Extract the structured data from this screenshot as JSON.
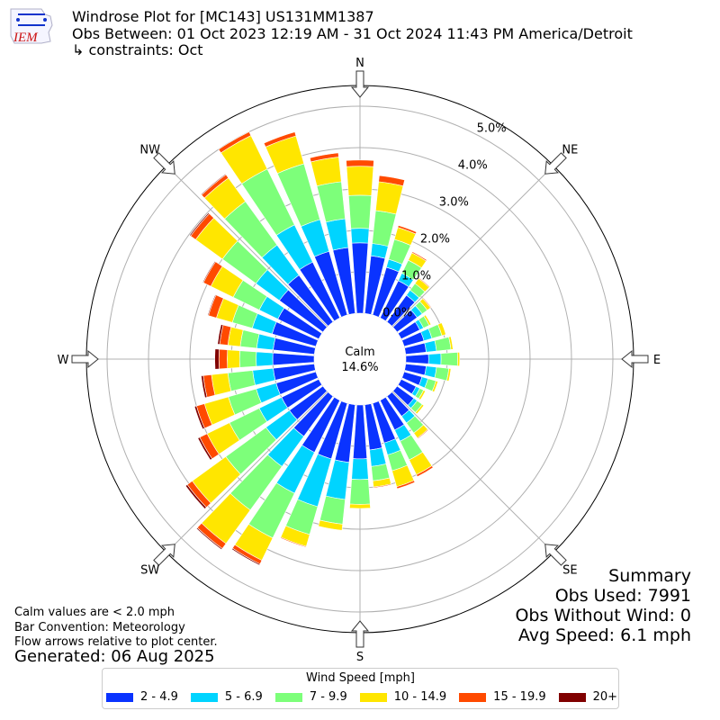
{
  "header": {
    "title": "Windrose Plot for [MC143] US131MM1387",
    "period": "Obs Between: 01 Oct 2023 12:19 AM - 31 Oct 2024 11:43 PM America/Detroit",
    "constraints": "↳ constraints: Oct"
  },
  "logo": {
    "text": "IEM",
    "icon": "iem-logo-icon"
  },
  "notes": {
    "calm": "Calm values are < 2.0 mph",
    "bar": "Bar Convention: Meteorology",
    "arrows": "Flow arrows relative to plot center.",
    "generated": "Generated: 06 Aug 2025"
  },
  "summary": {
    "heading": "Summary",
    "obs_used": "Obs Used: 7991",
    "obs_without_wind": "Obs Without Wind: 0",
    "avg_speed": "Avg Speed: 6.1 mph"
  },
  "chart_data": {
    "type": "windrose",
    "calm_label": "Calm",
    "calm_percent": "14.6%",
    "directions": [
      "N",
      "NE",
      "E",
      "SE",
      "S",
      "SW",
      "W",
      "NW"
    ],
    "radial_ticks": [
      "0.0%",
      "1.0%",
      "2.0%",
      "3.0%",
      "4.0%",
      "5.0%"
    ],
    "rmax": 5.5,
    "legend_title": "Wind Speed [mph]",
    "bins": [
      {
        "label": "2 - 4.9",
        "color": "#0a33ff"
      },
      {
        "label": "5 - 6.9",
        "color": "#00d4ff"
      },
      {
        "label": "7 - 9.9",
        "color": "#7dff7a"
      },
      {
        "label": "10 - 14.9",
        "color": "#ffe600"
      },
      {
        "label": "15 - 19.9",
        "color": "#ff4a00"
      },
      {
        "label": "20+",
        "color": "#800000"
      }
    ],
    "sector_width_deg": 10,
    "sectors": [
      {
        "dir": 0,
        "values": [
          1.7,
          0.35,
          0.8,
          0.7,
          0.15,
          0
        ]
      },
      {
        "dir": 10,
        "values": [
          1.4,
          0.3,
          0.8,
          0.7,
          0.15,
          0
        ]
      },
      {
        "dir": 20,
        "values": [
          1.2,
          0.2,
          0.5,
          0.3,
          0.05,
          0
        ]
      },
      {
        "dir": 30,
        "values": [
          1.0,
          0.2,
          0.35,
          0.2,
          0.03,
          0
        ]
      },
      {
        "dir": 40,
        "values": [
          0.8,
          0.15,
          0.2,
          0.15,
          0.02,
          0
        ]
      },
      {
        "dir": 50,
        "values": [
          0.6,
          0.15,
          0.15,
          0.1,
          0.02,
          0
        ]
      },
      {
        "dir": 60,
        "values": [
          0.5,
          0.1,
          0.15,
          0.05,
          0,
          0
        ]
      },
      {
        "dir": 70,
        "values": [
          0.5,
          0.2,
          0.25,
          0.1,
          0,
          0
        ]
      },
      {
        "dir": 80,
        "values": [
          0.5,
          0.25,
          0.35,
          0.05,
          0,
          0
        ]
      },
      {
        "dir": 90,
        "values": [
          0.55,
          0.3,
          0.4,
          0.05,
          0,
          0
        ]
      },
      {
        "dir": 100,
        "values": [
          0.5,
          0.25,
          0.3,
          0.05,
          0,
          0
        ]
      },
      {
        "dir": 110,
        "values": [
          0.45,
          0.15,
          0.2,
          0.05,
          0,
          0
        ]
      },
      {
        "dir": 120,
        "values": [
          0.4,
          0.1,
          0.1,
          0.05,
          0,
          0
        ]
      },
      {
        "dir": 130,
        "values": [
          0.5,
          0.1,
          0.15,
          0.05,
          0,
          0
        ]
      },
      {
        "dir": 140,
        "values": [
          0.6,
          0.2,
          0.3,
          0.15,
          0.02,
          0
        ]
      },
      {
        "dir": 150,
        "values": [
          0.8,
          0.3,
          0.5,
          0.4,
          0.05,
          0
        ]
      },
      {
        "dir": 160,
        "values": [
          1.0,
          0.3,
          0.4,
          0.4,
          0.05,
          0
        ]
      },
      {
        "dir": 170,
        "values": [
          1.1,
          0.4,
          0.35,
          0.15,
          0.02,
          0
        ]
      },
      {
        "dir": 180,
        "values": [
          1.3,
          0.5,
          0.6,
          0.1,
          0,
          0
        ]
      },
      {
        "dir": 190,
        "values": [
          1.4,
          0.9,
          0.6,
          0.15,
          0,
          0
        ]
      },
      {
        "dir": 200,
        "values": [
          1.4,
          1.2,
          0.7,
          0.3,
          0.02,
          0
        ]
      },
      {
        "dir": 210,
        "values": [
          1.4,
          1.1,
          1.2,
          0.6,
          0.1,
          0.03
        ]
      },
      {
        "dir": 220,
        "values": [
          1.2,
          0.9,
          1.3,
          1.0,
          0.15,
          0.03
        ]
      },
      {
        "dir": 230,
        "values": [
          1.0,
          0.7,
          1.2,
          1.0,
          0.15,
          0.05
        ]
      },
      {
        "dir": 240,
        "values": [
          1.0,
          0.6,
          0.8,
          0.6,
          0.2,
          0.05
        ]
      },
      {
        "dir": 250,
        "values": [
          1.0,
          0.5,
          0.7,
          0.6,
          0.2,
          0.05
        ]
      },
      {
        "dir": 260,
        "values": [
          1.0,
          0.5,
          0.6,
          0.4,
          0.2,
          0.05
        ]
      },
      {
        "dir": 270,
        "values": [
          1.0,
          0.4,
          0.4,
          0.3,
          0.2,
          0.1
        ]
      },
      {
        "dir": 280,
        "values": [
          1.0,
          0.4,
          0.4,
          0.3,
          0.2,
          0.05
        ]
      },
      {
        "dir": 290,
        "values": [
          1.1,
          0.5,
          0.5,
          0.4,
          0.2,
          0.02
        ]
      },
      {
        "dir": 300,
        "values": [
          1.1,
          0.5,
          0.7,
          0.6,
          0.2,
          0.02
        ]
      },
      {
        "dir": 310,
        "values": [
          1.3,
          0.7,
          1.0,
          0.8,
          0.15,
          0.03
        ]
      },
      {
        "dir": 320,
        "values": [
          1.4,
          0.9,
          1.3,
          0.7,
          0.1,
          0.02
        ]
      },
      {
        "dir": 330,
        "values": [
          1.5,
          1.0,
          1.5,
          0.9,
          0.1,
          0
        ]
      },
      {
        "dir": 340,
        "values": [
          1.6,
          0.8,
          1.4,
          0.7,
          0.1,
          0
        ]
      },
      {
        "dir": 350,
        "values": [
          1.6,
          0.7,
          0.9,
          0.6,
          0.1,
          0
        ]
      }
    ]
  }
}
